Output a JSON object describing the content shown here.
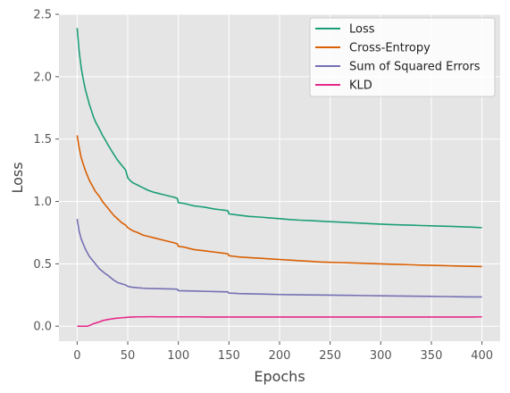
{
  "chart_data": {
    "type": "line",
    "title": "",
    "xlabel": "Epochs",
    "ylabel": "Loss",
    "xlim": [
      -18,
      418
    ],
    "ylim": [
      -0.12,
      2.5
    ],
    "xticks": [
      0,
      50,
      100,
      150,
      200,
      250,
      300,
      350,
      400
    ],
    "xtick_labels": [
      "0",
      "50",
      "100",
      "150",
      "200",
      "250",
      "300",
      "350",
      "400"
    ],
    "yticks": [
      0.0,
      0.5,
      1.0,
      1.5,
      2.0,
      2.5
    ],
    "ytick_labels": [
      "0.0",
      "0.5",
      "1.0",
      "1.5",
      "2.0",
      "2.5"
    ],
    "grid": true,
    "legend_position": "top-right",
    "x": [
      0,
      2,
      4,
      6,
      8,
      10,
      12,
      14,
      16,
      18,
      20,
      22,
      25,
      28,
      30,
      33,
      36,
      40,
      44,
      48,
      50,
      52,
      55,
      60,
      65,
      70,
      75,
      80,
      85,
      90,
      95,
      99,
      100,
      105,
      110,
      115,
      120,
      125,
      130,
      135,
      140,
      145,
      149,
      150,
      155,
      160,
      170,
      180,
      190,
      200,
      210,
      220,
      230,
      240,
      250,
      260,
      270,
      280,
      290,
      300,
      310,
      320,
      330,
      340,
      350,
      360,
      370,
      380,
      390,
      400
    ],
    "series": [
      {
        "name": "Loss",
        "color": "#1b9e77",
        "values": [
          2.39,
          2.2,
          2.07,
          1.98,
          1.9,
          1.84,
          1.78,
          1.73,
          1.68,
          1.64,
          1.61,
          1.58,
          1.53,
          1.49,
          1.46,
          1.42,
          1.38,
          1.33,
          1.29,
          1.25,
          1.19,
          1.17,
          1.15,
          1.13,
          1.11,
          1.09,
          1.075,
          1.065,
          1.055,
          1.045,
          1.035,
          1.025,
          0.99,
          0.985,
          0.975,
          0.965,
          0.96,
          0.955,
          0.948,
          0.94,
          0.935,
          0.93,
          0.925,
          0.9,
          0.895,
          0.89,
          0.88,
          0.875,
          0.868,
          0.862,
          0.855,
          0.85,
          0.847,
          0.842,
          0.838,
          0.834,
          0.83,
          0.826,
          0.822,
          0.818,
          0.815,
          0.812,
          0.81,
          0.807,
          0.805,
          0.802,
          0.8,
          0.797,
          0.794,
          0.79
        ]
      },
      {
        "name": "Cross-Entropy",
        "color": "#d95f02",
        "values": [
          1.53,
          1.43,
          1.35,
          1.3,
          1.25,
          1.21,
          1.17,
          1.14,
          1.11,
          1.08,
          1.06,
          1.04,
          1.0,
          0.97,
          0.95,
          0.92,
          0.89,
          0.86,
          0.83,
          0.81,
          0.79,
          0.78,
          0.765,
          0.75,
          0.73,
          0.72,
          0.71,
          0.7,
          0.69,
          0.68,
          0.67,
          0.66,
          0.64,
          0.635,
          0.625,
          0.615,
          0.61,
          0.605,
          0.6,
          0.595,
          0.59,
          0.585,
          0.58,
          0.565,
          0.56,
          0.555,
          0.55,
          0.545,
          0.54,
          0.535,
          0.53,
          0.525,
          0.52,
          0.515,
          0.512,
          0.51,
          0.508,
          0.505,
          0.502,
          0.5,
          0.497,
          0.495,
          0.493,
          0.49,
          0.488,
          0.486,
          0.484,
          0.482,
          0.48,
          0.478
        ]
      },
      {
        "name": "Sum of Squared Errors",
        "color": "#7570b3",
        "values": [
          0.86,
          0.76,
          0.7,
          0.66,
          0.62,
          0.59,
          0.56,
          0.54,
          0.52,
          0.5,
          0.48,
          0.46,
          0.44,
          0.42,
          0.41,
          0.39,
          0.37,
          0.35,
          0.34,
          0.33,
          0.32,
          0.315,
          0.312,
          0.308,
          0.305,
          0.303,
          0.302,
          0.301,
          0.3,
          0.299,
          0.298,
          0.297,
          0.285,
          0.284,
          0.283,
          0.282,
          0.281,
          0.28,
          0.279,
          0.278,
          0.277,
          0.276,
          0.275,
          0.265,
          0.264,
          0.262,
          0.26,
          0.258,
          0.256,
          0.254,
          0.253,
          0.252,
          0.251,
          0.25,
          0.249,
          0.248,
          0.247,
          0.246,
          0.245,
          0.244,
          0.243,
          0.242,
          0.241,
          0.24,
          0.239,
          0.238,
          0.237,
          0.236,
          0.235,
          0.235
        ]
      },
      {
        "name": "KLD",
        "color": "#e7298a",
        "values": [
          0.0,
          0.0,
          0.0,
          0.0,
          0.0,
          0.0,
          0.005,
          0.012,
          0.02,
          0.025,
          0.03,
          0.035,
          0.045,
          0.05,
          0.053,
          0.057,
          0.061,
          0.065,
          0.068,
          0.07,
          0.072,
          0.073,
          0.074,
          0.075,
          0.075,
          0.076,
          0.076,
          0.075,
          0.075,
          0.075,
          0.075,
          0.075,
          0.075,
          0.075,
          0.075,
          0.075,
          0.075,
          0.074,
          0.074,
          0.074,
          0.074,
          0.074,
          0.074,
          0.074,
          0.074,
          0.074,
          0.074,
          0.074,
          0.074,
          0.074,
          0.074,
          0.074,
          0.074,
          0.074,
          0.074,
          0.074,
          0.074,
          0.074,
          0.074,
          0.074,
          0.074,
          0.074,
          0.074,
          0.074,
          0.074,
          0.074,
          0.074,
          0.074,
          0.074,
          0.075
        ]
      }
    ]
  }
}
